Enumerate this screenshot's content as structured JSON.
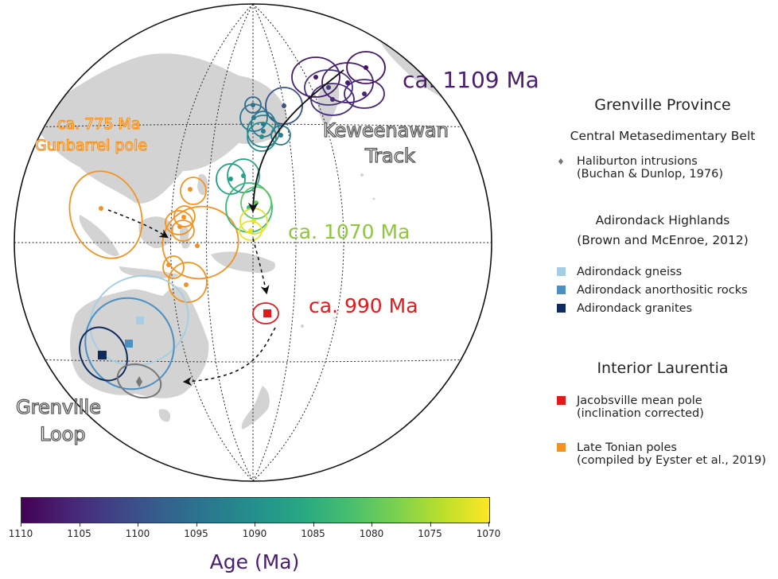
{
  "map_labels": {
    "keweenawan": "ca. 1109 Ma",
    "keweenawan_track_1": "Keweenawan",
    "keweenawan_track_2": "Track",
    "gunbarrel_age": "ca. 775 Ma",
    "gunbarrel_name": "Gunbarrel pole",
    "mid_age": "ca. 1070 Ma",
    "jacobsville_age": "ca. 990 Ma",
    "grenville_loop_1": "Grenville",
    "grenville_loop_2": "Loop"
  },
  "colors": {
    "land": "#d3d3d3",
    "late_tonian": "#f5921e",
    "jacobsville": "#e31a1c",
    "age_1109": "#4b1d6e",
    "age_1070": "#8fc640",
    "adirondack_gneiss": "#a6cee3",
    "adirondack_anorthositic": "#4a90c2",
    "adirondack_granites": "#0f2b5c",
    "haliburton": "#777777"
  },
  "legend": {
    "section1_title": "Grenville Province",
    "section1_sub": "Central Metasedimentary Belt",
    "haliburton_line1": "Haliburton intrusions",
    "haliburton_line2": "(Buchan & Dunlop, 1976)",
    "haliburton_symbol": "♦",
    "section2_title": "Adirondack Highlands",
    "section2_sub": "(Brown and McEnroe, 2012)",
    "gneiss": "Adirondack gneiss",
    "anorthositic": "Adirondack anorthositic rocks",
    "granites": "Adirondack granites",
    "section3_title": "Interior Laurentia",
    "jacobsville_line1": "Jacobsville mean pole",
    "jacobsville_line2": "(inclination corrected)",
    "tonian_line1": "Late Tonian poles",
    "tonian_line2": "(compiled by Eyster et al., 2019)"
  },
  "colorbar": {
    "title": "Age (Ma)",
    "ticks": [
      "1110",
      "1105",
      "1100",
      "1095",
      "1090",
      "1085",
      "1080",
      "1075",
      "1070"
    ],
    "range": [
      1110,
      1070
    ],
    "colormap": "viridis"
  },
  "poles": {
    "keweenawan_track": [
      {
        "age": 1108
      },
      {
        "age": 1107
      },
      {
        "age": 1107
      },
      {
        "age": 1106
      },
      {
        "age": 1105
      },
      {
        "age": 1104
      },
      {
        "age": 1100
      },
      {
        "age": 1096
      },
      {
        "age": 1095
      },
      {
        "age": 1094
      },
      {
        "age": 1093
      },
      {
        "age": 1092
      },
      {
        "age": 1090
      },
      {
        "age": 1088
      },
      {
        "age": 1087
      },
      {
        "age": 1083
      },
      {
        "age": 1080
      },
      {
        "age": 1072
      },
      {
        "age": 1071
      }
    ],
    "late_tonian_count": 9,
    "jacobsville_count": 1,
    "adirondack_count": 3,
    "haliburton_count": 1
  }
}
